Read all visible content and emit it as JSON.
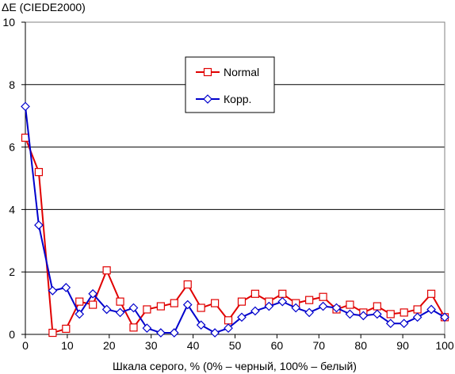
{
  "chart_data": {
    "type": "line",
    "ylabel": "ΔE (CIEDE2000)",
    "xlabel": "Шкала серого, % (0% – черный, 100% – белый)",
    "xlim": [
      0,
      100
    ],
    "ylim": [
      0,
      10
    ],
    "xticks": [
      "0",
      "10",
      "20",
      "30",
      "40",
      "50",
      "60",
      "70",
      "80",
      "90",
      "100"
    ],
    "yticks": [
      "0",
      "2",
      "4",
      "6",
      "8",
      "10"
    ],
    "grid": "horizontal",
    "legend_position": "top-center",
    "series": [
      {
        "name": "Normal",
        "color": "#e00000",
        "marker": "square",
        "x": [
          0,
          3.2,
          6.5,
          9.7,
          12.9,
          16.1,
          19.4,
          22.6,
          25.8,
          29.0,
          32.3,
          35.5,
          38.7,
          41.9,
          45.2,
          48.4,
          51.6,
          54.8,
          58.1,
          61.3,
          64.5,
          67.7,
          71.0,
          74.2,
          77.4,
          80.6,
          83.9,
          87.1,
          90.3,
          93.5,
          96.8,
          100
        ],
        "values": [
          6.3,
          5.2,
          0.05,
          0.18,
          1.05,
          0.95,
          2.05,
          1.05,
          0.22,
          0.8,
          0.9,
          1.0,
          1.6,
          0.85,
          1.0,
          0.45,
          1.05,
          1.3,
          1.05,
          1.3,
          1.0,
          1.1,
          1.2,
          0.8,
          0.95,
          0.7,
          0.9,
          0.65,
          0.7,
          0.8,
          1.3,
          0.55
        ]
      },
      {
        "name": "Корр.",
        "color": "#0000cc",
        "marker": "diamond",
        "x": [
          0,
          3.2,
          6.5,
          9.7,
          12.9,
          16.1,
          19.4,
          22.6,
          25.8,
          29.0,
          32.3,
          35.5,
          38.7,
          41.9,
          45.2,
          48.4,
          51.6,
          54.8,
          58.1,
          61.3,
          64.5,
          67.7,
          71.0,
          74.2,
          77.4,
          80.6,
          83.9,
          87.1,
          90.3,
          93.5,
          96.8,
          100
        ],
        "values": [
          7.3,
          3.5,
          1.4,
          1.5,
          0.65,
          1.3,
          0.8,
          0.7,
          0.85,
          0.2,
          0.05,
          0.05,
          0.95,
          0.3,
          0.05,
          0.2,
          0.55,
          0.75,
          0.9,
          1.05,
          0.85,
          0.7,
          0.9,
          0.85,
          0.65,
          0.6,
          0.65,
          0.35,
          0.35,
          0.55,
          0.8,
          0.55
        ]
      }
    ]
  }
}
